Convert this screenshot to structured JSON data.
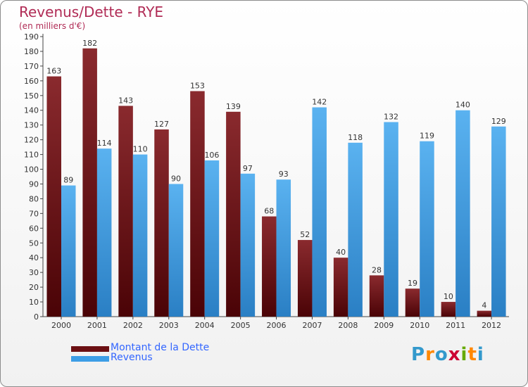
{
  "title": "Revenus/Dette - RYE",
  "subtitle": "(en milliers d'€)",
  "colors": {
    "dette": "#6b0f12",
    "revenus": "#3d9ee6",
    "title": "#b02b55",
    "legend_text": "#3366ff"
  },
  "legend": [
    {
      "label": "Montant de la Dette",
      "color": "#6b0f12"
    },
    {
      "label": "Revenus",
      "color": "#3d9ee6"
    }
  ],
  "logo": {
    "text": "Proxiti",
    "colors": [
      "#3399cc",
      "#ff8800",
      "#3399cc",
      "#cc0033",
      "#66aa00",
      "#ff8800",
      "#3399cc"
    ]
  },
  "chart_data": {
    "type": "bar",
    "categories": [
      "2000",
      "2001",
      "2002",
      "2003",
      "2004",
      "2005",
      "2006",
      "2007",
      "2008",
      "2009",
      "2010",
      "2011",
      "2012"
    ],
    "series": [
      {
        "name": "Montant de la Dette",
        "values": [
          163,
          182,
          143,
          127,
          153,
          139,
          68,
          52,
          40,
          28,
          19,
          10,
          4
        ]
      },
      {
        "name": "Revenus",
        "values": [
          89,
          114,
          110,
          90,
          106,
          97,
          93,
          142,
          118,
          132,
          119,
          140,
          129
        ]
      }
    ],
    "ylim": [
      0,
      190
    ],
    "ytick_step": 10,
    "grid": false,
    "legend_position": "bottom-left"
  }
}
